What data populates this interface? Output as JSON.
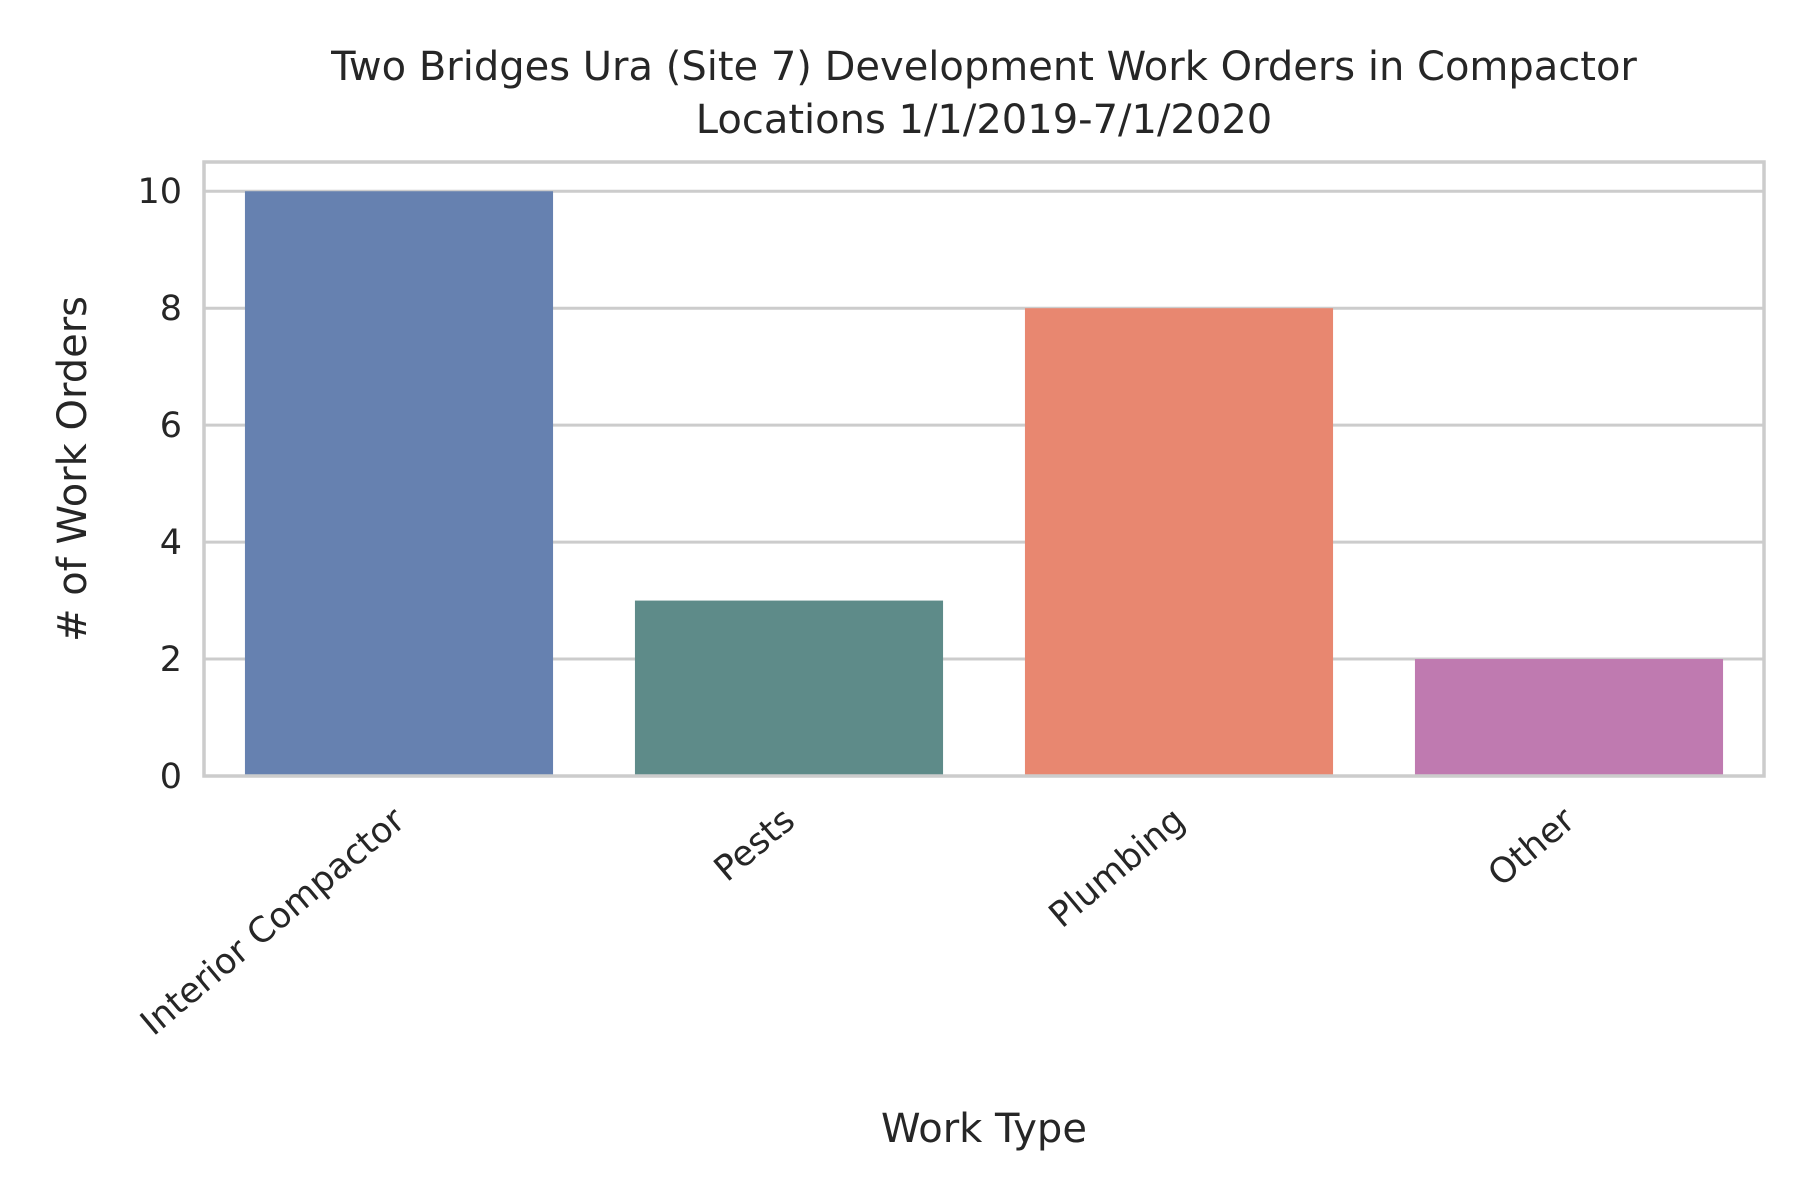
{
  "chart_data": {
    "type": "bar",
    "title_lines": [
      "Two Bridges Ura (Site 7) Development Work Orders in Compactor",
      "Locations 1/1/2019-7/1/2020"
    ],
    "xlabel": "Work Type",
    "ylabel": "# of Work Orders",
    "categories": [
      "Interior Compactor",
      "Pests",
      "Plumbing",
      "Other"
    ],
    "values": [
      10,
      3,
      8,
      2
    ],
    "colors": [
      "#6681b0",
      "#5e8b89",
      "#e88770",
      "#bf7ab0"
    ],
    "ylim": [
      0,
      10.5
    ],
    "yticks": [
      0,
      2,
      4,
      6,
      8,
      10
    ],
    "grid": true,
    "legend": "none"
  }
}
